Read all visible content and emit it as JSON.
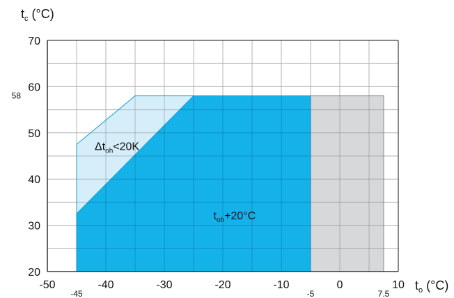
{
  "chart_data": {
    "type": "area",
    "title": "",
    "xlabel": "t",
    "xlabel_sub": "o",
    "xlabel_unit": " (°C)",
    "ylabel": "t",
    "ylabel_sub": "c",
    "ylabel_unit": " (°C)",
    "xlim": [
      -50,
      10
    ],
    "ylim": [
      20,
      70
    ],
    "grid": true,
    "x_ticks": [
      -50,
      -40,
      -30,
      -20,
      -10,
      0,
      10
    ],
    "x_tick_labels": [
      "-50",
      "-40",
      "-30",
      "-20",
      "-10",
      "0",
      "10"
    ],
    "y_ticks": [
      20,
      30,
      40,
      50,
      60,
      70
    ],
    "y_tick_labels": [
      "20",
      "30",
      "40",
      "50",
      "60",
      "70"
    ],
    "extra_x_ticks": [
      {
        "value": -45,
        "label": "-45"
      },
      {
        "value": -5,
        "label": "-5"
      },
      {
        "value": 7.5,
        "label": "7.5"
      }
    ],
    "extra_y_ticks": [
      {
        "value": 58,
        "label": "58"
      }
    ],
    "regions": [
      {
        "name": "grey-region",
        "color": "#d7d8da",
        "stroke": "#8c8c8c",
        "points": [
          [
            -5,
            20
          ],
          [
            7.5,
            20
          ],
          [
            7.5,
            58
          ],
          [
            -5,
            58
          ]
        ]
      },
      {
        "name": "light-blue-region",
        "color": "#d6eefa",
        "stroke": "#1aa6dc",
        "points": [
          [
            -45,
            20
          ],
          [
            -45,
            47.5
          ],
          [
            -35,
            58
          ],
          [
            -25,
            58
          ],
          [
            -45,
            32.5
          ]
        ]
      },
      {
        "name": "blue-region",
        "color": "#15b2ea",
        "stroke": "#0f9fd6",
        "points": [
          [
            -45,
            20
          ],
          [
            -5,
            20
          ],
          [
            -5,
            58
          ],
          [
            -25,
            58
          ],
          [
            -45,
            32.5
          ]
        ]
      }
    ],
    "annotations": [
      {
        "name": "delta-annotation",
        "main": "Δt",
        "sub": "oh",
        "rest": "<20K",
        "x": -45,
        "y": 46
      },
      {
        "name": "toh-annotation",
        "main": "t",
        "sub": "oh",
        "rest": "+20°C",
        "x": -24.7,
        "y": 31
      }
    ]
  }
}
